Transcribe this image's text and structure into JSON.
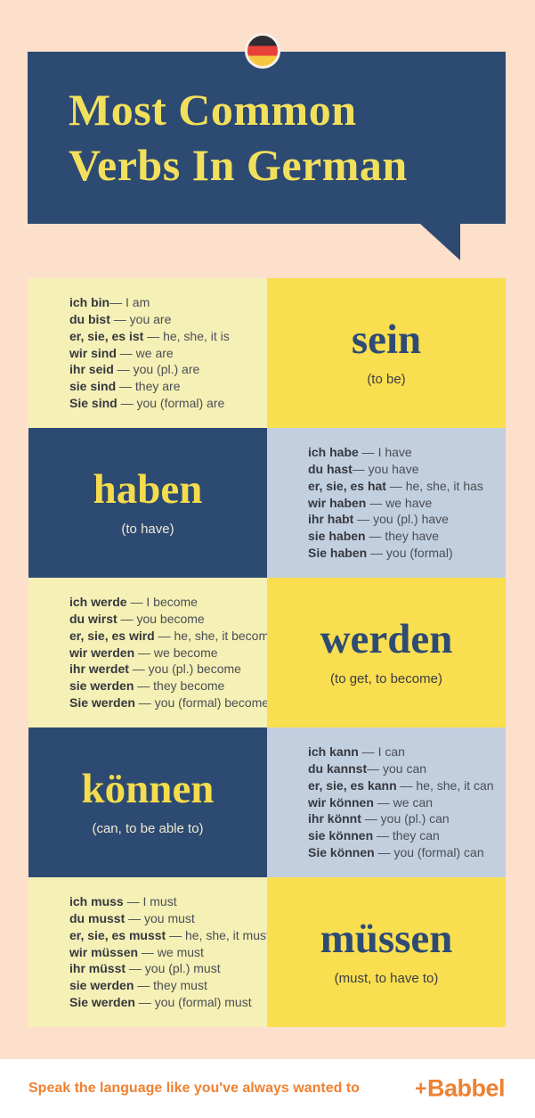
{
  "colors": {
    "background_peach": "#fce0cb",
    "navy": "#2d4a72",
    "cell_yellow": "#f9de4f",
    "cell_cream": "#f5f0b6",
    "cell_grayblue": "#c2cfdf",
    "title_yellow": "#f2e05c",
    "brand_orange": "#ef8132",
    "flag_black": "#2e2d33",
    "flag_red": "#e8403a",
    "flag_gold": "#f5c73e"
  },
  "header": {
    "title_line1": "Most Common",
    "title_line2": "Verbs In German",
    "flag_icon": "german-flag"
  },
  "verbs": [
    {
      "verb": "sein",
      "gloss": "(to be)",
      "lines": [
        {
          "de": "ich bin",
          "en": "— I am"
        },
        {
          "de": "du bist",
          "en": " — you are"
        },
        {
          "de": "er, sie, es ist",
          "en": " — he, she, it is"
        },
        {
          "de": "wir sind",
          "en": " — we are"
        },
        {
          "de": "ihr seid",
          "en": " — you (pl.) are"
        },
        {
          "de": "sie sind",
          "en": " — they are"
        },
        {
          "de": "Sie sind",
          "en": " — you (formal) are"
        }
      ]
    },
    {
      "verb": "haben",
      "gloss": "(to have)",
      "lines": [
        {
          "de": "ich habe",
          "en": " — I have"
        },
        {
          "de": "du hast",
          "en": "— you have"
        },
        {
          "de": "er, sie, es hat",
          "en": " — he, she, it has"
        },
        {
          "de": "wir haben",
          "en": " — we have"
        },
        {
          "de": "ihr habt",
          "en": " — you (pl.) have"
        },
        {
          "de": "sie haben",
          "en": " — they have"
        },
        {
          "de": "Sie haben",
          "en": " — you (formal)"
        }
      ]
    },
    {
      "verb": "werden",
      "gloss": "(to get, to become)",
      "lines": [
        {
          "de": "ich werde",
          "en": " — I become"
        },
        {
          "de": "du wirst",
          "en": " — you become"
        },
        {
          "de": "er, sie, es wird",
          "en": " — he, she, it becomes"
        },
        {
          "de": "wir werden",
          "en": " — we become"
        },
        {
          "de": "ihr werdet",
          "en": " — you (pl.) become"
        },
        {
          "de": "sie werden",
          "en": " — they become"
        },
        {
          "de": "Sie werden",
          "en": " — you (formal) become"
        }
      ]
    },
    {
      "verb": "können",
      "gloss": "(can, to be able to)",
      "lines": [
        {
          "de": "ich kann",
          "en": " — I can"
        },
        {
          "de": "du kannst",
          "en": "— you can"
        },
        {
          "de": "er, sie, es kann",
          "en": " — he, she, it can"
        },
        {
          "de": "wir können",
          "en": " — we can"
        },
        {
          "de": "ihr könnt",
          "en": " — you (pl.) can"
        },
        {
          "de": "sie können",
          "en": " — they can"
        },
        {
          "de": "Sie können",
          "en": " — you (formal) can"
        }
      ]
    },
    {
      "verb": "müssen",
      "gloss": "(must, to have to)",
      "lines": [
        {
          "de": "ich muss",
          "en": " — I must"
        },
        {
          "de": "du musst",
          "en": " — you must"
        },
        {
          "de": "er, sie, es musst",
          "en": " — he, she, it must"
        },
        {
          "de": "wir müssen",
          "en": " — we must"
        },
        {
          "de": "ihr müsst",
          "en": " — you (pl.) must"
        },
        {
          "de": "sie werden",
          "en": " — they must"
        },
        {
          "de": "Sie werden",
          "en": " — you (formal) must"
        }
      ]
    }
  ],
  "footer": {
    "tagline": "Speak the language like you've always wanted to",
    "brand_plus": "+",
    "brand": "Babbel"
  }
}
